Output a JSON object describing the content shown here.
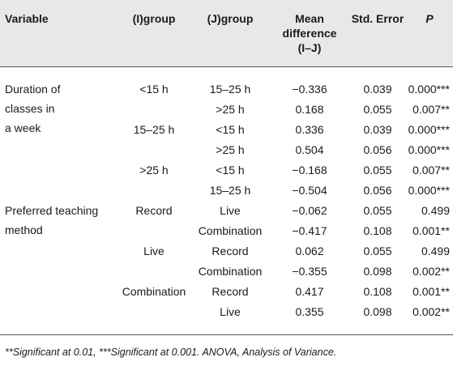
{
  "headers": {
    "variable": "Variable",
    "i_group": "(I)group",
    "j_group": "(J)group",
    "mean_diff": [
      "Mean",
      "difference",
      "(I–J)"
    ],
    "std_error": "Std. Error",
    "p": "P"
  },
  "groups": [
    {
      "variable": [
        "Duration of",
        "classes in",
        "a week"
      ],
      "rows": [
        {
          "i": "<15 h",
          "j": "15–25 h",
          "mean": "−0.336",
          "se": "0.039",
          "p": "0.000***"
        },
        {
          "i": "",
          "j": ">25 h",
          "mean": "0.168",
          "se": "0.055",
          "p": "0.007**"
        },
        {
          "i": "15–25 h",
          "j": "<15 h",
          "mean": "0.336",
          "se": "0.039",
          "p": "0.000***"
        },
        {
          "i": "",
          "j": ">25 h",
          "mean": "0.504",
          "se": "0.056",
          "p": "0.000***"
        },
        {
          "i": ">25 h",
          "j": "<15 h",
          "mean": "−0.168",
          "se": "0.055",
          "p": "0.007**"
        },
        {
          "i": "",
          "j": "15–25 h",
          "mean": "−0.504",
          "se": "0.056",
          "p": "0.000***"
        }
      ]
    },
    {
      "variable": [
        "Preferred teaching",
        "method"
      ],
      "rows": [
        {
          "i": "Record",
          "j": "Live",
          "mean": "−0.062",
          "se": "0.055",
          "p": "0.499"
        },
        {
          "i": "",
          "j": "Combination",
          "mean": "−0.417",
          "se": "0.108",
          "p": "0.001**"
        },
        {
          "i": "Live",
          "j": "Record",
          "mean": "0.062",
          "se": "0.055",
          "p": "0.499"
        },
        {
          "i": "",
          "j": "Combination",
          "mean": "−0.355",
          "se": "0.098",
          "p": "0.002**"
        },
        {
          "i": "Combination",
          "j": "Record",
          "mean": "0.417",
          "se": "0.108",
          "p": "0.001**"
        },
        {
          "i": "",
          "j": "Live",
          "mean": "0.355",
          "se": "0.098",
          "p": "0.002**"
        }
      ]
    }
  ],
  "footnote": "**Significant at 0.01, ***Significant at 0.001. ANOVA, Analysis of Variance."
}
